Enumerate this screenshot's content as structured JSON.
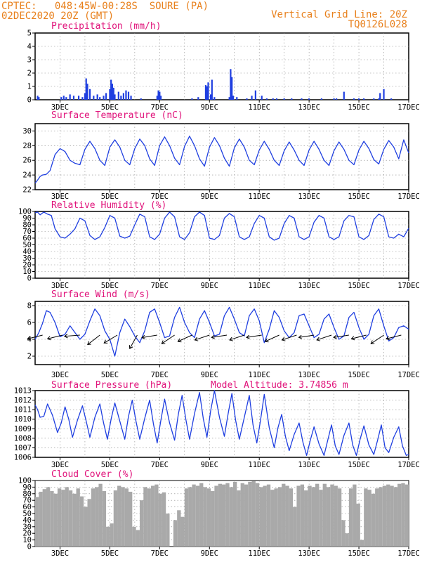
{
  "header": {
    "line1_left": "CPTEC:   048:45W-00:28S  SOURE (PA)",
    "line2_left": "02DEC2020 20Z (GMT)",
    "line1_right": "Vertical Grid Line: 20Z",
    "line2_right": "TQ0126L028"
  },
  "colors": {
    "header_text": "#e8801c",
    "panel_title": "#e0127a",
    "series": "#1f3fe0",
    "cloud": "#a9a9a9",
    "grid": "#8a8a8a",
    "wind_arrow": "#000000"
  },
  "x_axis": {
    "tick_labels": [
      "3DEC",
      "5DEC",
      "7DEC",
      "9DEC",
      "11DEC",
      "13DEC",
      "15DEC",
      "17DEC"
    ],
    "tick_days": [
      3,
      5,
      7,
      9,
      11,
      13,
      15,
      17
    ],
    "start_day": 2.0,
    "end_day": 17.0,
    "vertical_grid": "20Z daily"
  },
  "chart_data": [
    {
      "id": "precip",
      "type": "bar",
      "title": "Precipitation (mm/h)",
      "ylim": [
        0,
        5
      ],
      "yticks": [
        "0",
        "1",
        "2",
        "3",
        "4",
        "5"
      ],
      "x": [
        2.1,
        2.15,
        3.05,
        3.15,
        3.25,
        3.4,
        3.55,
        3.75,
        3.9,
        4.0,
        4.05,
        4.1,
        4.2,
        4.35,
        4.5,
        4.6,
        4.75,
        4.85,
        5.0,
        5.05,
        5.1,
        5.15,
        5.2,
        5.35,
        5.45,
        5.55,
        5.65,
        5.75,
        5.85,
        6.25,
        6.9,
        6.95,
        7.0,
        7.05,
        8.3,
        8.55,
        8.85,
        8.9,
        8.95,
        9.05,
        9.1,
        9.2,
        9.8,
        9.85,
        9.9,
        9.95,
        10.1,
        10.5,
        10.7,
        10.85,
        11.1,
        11.3,
        11.55,
        11.7,
        12.0,
        12.3,
        12.7,
        13.0,
        13.5,
        14.0,
        14.1,
        14.4,
        14.8,
        15.0,
        15.2,
        15.6,
        15.8,
        15.85,
        16.0,
        16.3
      ],
      "values": [
        0.3,
        0.2,
        0.2,
        0.3,
        0.2,
        0.4,
        0.3,
        0.3,
        0.2,
        0.5,
        1.6,
        1.2,
        0.8,
        0.3,
        0.4,
        0.2,
        0.3,
        0.5,
        0.8,
        1.5,
        1.2,
        0.9,
        0.4,
        0.6,
        0.3,
        0.5,
        0.7,
        0.6,
        0.3,
        0.1,
        0.3,
        0.7,
        0.6,
        0.3,
        0.1,
        0.2,
        1.1,
        1.0,
        1.3,
        0.4,
        1.5,
        0.2,
        0.2,
        2.3,
        1.7,
        0.3,
        0.2,
        0.1,
        0.3,
        0.7,
        0.3,
        0.1,
        0.1,
        0.1,
        0.1,
        0.1,
        0.1,
        0.1,
        0.1,
        0.1,
        0.1,
        0.6,
        0.1,
        0.1,
        0.1,
        0.1,
        0.1,
        0.5,
        0.8,
        0.1
      ]
    },
    {
      "id": "temperature",
      "type": "line",
      "title": "Surface Temperature (nC)",
      "ylim": [
        22,
        31
      ],
      "yticks": [
        "22",
        "24",
        "26",
        "28",
        "30"
      ],
      "x": [
        2.0,
        2.1,
        2.2,
        2.3,
        2.45,
        2.6,
        2.8,
        3.0,
        3.2,
        3.4,
        3.6,
        3.8,
        4.0,
        4.2,
        4.4,
        4.6,
        4.8,
        5.0,
        5.2,
        5.4,
        5.6,
        5.8,
        6.0,
        6.2,
        6.4,
        6.6,
        6.8,
        7.0,
        7.2,
        7.4,
        7.6,
        7.8,
        8.0,
        8.2,
        8.4,
        8.6,
        8.8,
        9.0,
        9.2,
        9.4,
        9.6,
        9.8,
        10.0,
        10.2,
        10.4,
        10.6,
        10.8,
        11.0,
        11.2,
        11.4,
        11.6,
        11.8,
        12.0,
        12.2,
        12.4,
        12.6,
        12.8,
        13.0,
        13.2,
        13.4,
        13.6,
        13.8,
        14.0,
        14.2,
        14.4,
        14.6,
        14.8,
        15.0,
        15.2,
        15.4,
        15.6,
        15.8,
        16.0,
        16.2,
        16.4,
        16.6,
        16.8,
        17.0
      ],
      "values": [
        22.9,
        23.3,
        23.8,
        24.0,
        24.1,
        24.6,
        26.8,
        27.6,
        27.2,
        26.0,
        25.6,
        25.4,
        27.5,
        28.6,
        27.6,
        26.0,
        25.3,
        27.8,
        28.8,
        27.8,
        26.0,
        25.4,
        27.6,
        28.9,
        28.0,
        26.2,
        25.3,
        28.0,
        29.2,
        28.0,
        26.3,
        25.4,
        27.9,
        29.3,
        28.0,
        26.2,
        25.2,
        27.8,
        29.1,
        28.0,
        26.3,
        25.2,
        27.7,
        28.9,
        27.8,
        26.0,
        25.4,
        27.4,
        28.6,
        27.5,
        26.0,
        25.3,
        27.3,
        28.5,
        27.4,
        26.0,
        25.3,
        27.4,
        28.6,
        27.5,
        26.0,
        25.3,
        27.3,
        28.5,
        27.5,
        26.0,
        25.4,
        27.4,
        28.6,
        27.6,
        26.1,
        25.5,
        27.5,
        28.7,
        27.8,
        26.2,
        28.8,
        27.0
      ]
    },
    {
      "id": "humidity",
      "type": "line",
      "title": "Relative Humidity (%)",
      "ylim": [
        0,
        100
      ],
      "yticks": [
        "0",
        "10",
        "20",
        "30",
        "40",
        "50",
        "60",
        "70",
        "80",
        "90",
        "100"
      ],
      "x": [
        2.0,
        2.1,
        2.2,
        2.35,
        2.5,
        2.65,
        2.8,
        3.0,
        3.2,
        3.4,
        3.6,
        3.8,
        4.0,
        4.2,
        4.4,
        4.6,
        4.8,
        5.0,
        5.2,
        5.4,
        5.6,
        5.8,
        6.0,
        6.2,
        6.4,
        6.6,
        6.8,
        7.0,
        7.2,
        7.4,
        7.6,
        7.8,
        8.0,
        8.2,
        8.4,
        8.6,
        8.8,
        9.0,
        9.2,
        9.4,
        9.6,
        9.8,
        10.0,
        10.2,
        10.4,
        10.6,
        10.8,
        11.0,
        11.2,
        11.4,
        11.6,
        11.8,
        12.0,
        12.2,
        12.4,
        12.6,
        12.8,
        13.0,
        13.2,
        13.4,
        13.6,
        13.8,
        14.0,
        14.2,
        14.4,
        14.6,
        14.8,
        15.0,
        15.2,
        15.4,
        15.6,
        15.8,
        16.0,
        16.2,
        16.4,
        16.6,
        16.8,
        17.0
      ],
      "values": [
        98,
        99,
        95,
        99,
        96,
        94,
        74,
        62,
        60,
        66,
        74,
        90,
        86,
        64,
        58,
        62,
        76,
        94,
        90,
        63,
        60,
        63,
        80,
        96,
        92,
        62,
        58,
        66,
        90,
        99,
        92,
        62,
        58,
        68,
        92,
        99,
        94,
        60,
        58,
        64,
        90,
        97,
        92,
        62,
        58,
        62,
        82,
        94,
        90,
        62,
        57,
        60,
        82,
        94,
        90,
        62,
        58,
        62,
        84,
        94,
        90,
        62,
        58,
        62,
        86,
        94,
        92,
        62,
        58,
        64,
        88,
        96,
        92,
        62,
        60,
        66,
        62,
        75
      ]
    },
    {
      "id": "wind",
      "type": "line",
      "title": "Surface Wind (m/s)",
      "ylim": [
        1,
        8.5
      ],
      "yticks": [
        "2",
        "4",
        "6",
        "8"
      ],
      "x": [
        2.0,
        2.15,
        2.3,
        2.45,
        2.6,
        2.8,
        3.0,
        3.2,
        3.4,
        3.6,
        3.8,
        4.0,
        4.2,
        4.4,
        4.6,
        4.8,
        5.0,
        5.2,
        5.4,
        5.6,
        5.8,
        6.0,
        6.2,
        6.4,
        6.6,
        6.8,
        7.0,
        7.2,
        7.4,
        7.6,
        7.8,
        8.0,
        8.2,
        8.4,
        8.6,
        8.8,
        9.0,
        9.2,
        9.4,
        9.6,
        9.8,
        10.0,
        10.2,
        10.4,
        10.6,
        10.8,
        11.0,
        11.2,
        11.4,
        11.6,
        11.8,
        12.0,
        12.2,
        12.4,
        12.6,
        12.8,
        13.0,
        13.2,
        13.4,
        13.6,
        13.8,
        14.0,
        14.2,
        14.4,
        14.6,
        14.8,
        15.0,
        15.2,
        15.4,
        15.6,
        15.8,
        16.0,
        16.2,
        16.4,
        16.6,
        16.8,
        17.0
      ],
      "values": [
        4.0,
        4.8,
        5.9,
        7.4,
        7.2,
        6.0,
        4.3,
        4.6,
        5.6,
        4.8,
        4.0,
        4.6,
        6.2,
        7.6,
        6.8,
        5.0,
        4.0,
        2.0,
        4.8,
        6.4,
        5.5,
        4.4,
        3.6,
        5.0,
        7.2,
        7.6,
        6.0,
        4.2,
        4.4,
        6.6,
        7.8,
        6.0,
        4.8,
        4.2,
        6.4,
        7.4,
        6.0,
        4.4,
        4.6,
        6.8,
        7.8,
        6.4,
        4.8,
        4.4,
        6.8,
        7.6,
        6.2,
        3.6,
        5.2,
        7.4,
        6.6,
        5.0,
        4.2,
        4.8,
        6.8,
        7.0,
        5.6,
        4.2,
        4.6,
        6.4,
        7.0,
        5.4,
        4.0,
        4.4,
        6.6,
        7.2,
        5.4,
        4.0,
        4.6,
        6.8,
        7.6,
        5.6,
        3.8,
        4.2,
        5.4,
        5.6,
        5.2
      ],
      "arrows": {
        "x": [
          2.3,
          3.1,
          3.8,
          4.6,
          5.3,
          6.1,
          6.9,
          7.6,
          8.3,
          9.0,
          9.7,
          10.4,
          11.1,
          11.8,
          12.5,
          13.2,
          13.9,
          14.6,
          15.3,
          16.0,
          16.7
        ],
        "u": [
          1.2,
          1.2,
          1.3,
          0.9,
          1.0,
          0.5,
          1.2,
          0.9,
          1.1,
          1.2,
          1.3,
          1.2,
          1.3,
          1.1,
          1.2,
          1.3,
          1.2,
          1.3,
          1.2,
          0.9,
          1.2
        ],
        "v": [
          0.3,
          0.3,
          0.1,
          0.7,
          0.6,
          0.9,
          0.2,
          0.6,
          0.5,
          0.4,
          0.2,
          0.4,
          0.2,
          0.5,
          0.4,
          0.2,
          0.4,
          0.2,
          0.3,
          0.6,
          0.3
        ]
      }
    },
    {
      "id": "pressure",
      "type": "line",
      "title": "Surface Pressure (hPa)",
      "annotation": "Model Altitude: 3.74856 m",
      "ylim": [
        1006,
        1013
      ],
      "yticks": [
        "1006",
        "1007",
        "1008",
        "1009",
        "1010",
        "1011",
        "1012",
        "1013"
      ],
      "x": [
        2.0,
        2.1,
        2.2,
        2.35,
        2.5,
        2.7,
        2.9,
        3.05,
        3.2,
        3.35,
        3.5,
        3.7,
        3.9,
        4.05,
        4.2,
        4.4,
        4.6,
        4.75,
        4.9,
        5.05,
        5.2,
        5.4,
        5.6,
        5.75,
        5.9,
        6.05,
        6.2,
        6.4,
        6.6,
        6.75,
        6.9,
        7.05,
        7.2,
        7.4,
        7.6,
        7.75,
        7.9,
        8.05,
        8.2,
        8.4,
        8.6,
        8.75,
        8.9,
        9.05,
        9.2,
        9.4,
        9.6,
        9.75,
        9.9,
        10.05,
        10.2,
        10.4,
        10.6,
        10.75,
        10.9,
        11.05,
        11.2,
        11.4,
        11.6,
        11.75,
        11.9,
        12.05,
        12.2,
        12.4,
        12.6,
        12.75,
        12.9,
        13.05,
        13.2,
        13.4,
        13.6,
        13.75,
        13.9,
        14.05,
        14.2,
        14.4,
        14.6,
        14.75,
        14.9,
        15.05,
        15.2,
        15.4,
        15.6,
        15.75,
        15.9,
        16.05,
        16.2,
        16.4,
        16.6,
        16.75,
        16.9,
        17.0
      ],
      "values": [
        1011.5,
        1011.0,
        1010.2,
        1010.3,
        1011.6,
        1010.4,
        1008.6,
        1009.6,
        1011.3,
        1010.0,
        1008.1,
        1009.9,
        1011.4,
        1009.8,
        1008.1,
        1010.2,
        1011.6,
        1009.6,
        1007.9,
        1010.0,
        1011.7,
        1009.8,
        1007.9,
        1010.3,
        1012.0,
        1009.8,
        1007.9,
        1010.1,
        1012.0,
        1009.5,
        1007.5,
        1009.9,
        1012.1,
        1009.6,
        1007.8,
        1010.5,
        1012.5,
        1010.0,
        1007.9,
        1010.6,
        1012.8,
        1010.1,
        1008.1,
        1010.9,
        1013.0,
        1010.2,
        1008.2,
        1010.6,
        1012.7,
        1009.9,
        1007.9,
        1010.2,
        1012.5,
        1009.4,
        1007.5,
        1009.9,
        1012.6,
        1009.1,
        1007.0,
        1009.1,
        1010.5,
        1008.2,
        1006.7,
        1008.4,
        1009.6,
        1007.6,
        1006.2,
        1007.8,
        1009.2,
        1007.4,
        1006.2,
        1007.8,
        1009.4,
        1007.2,
        1006.3,
        1008.3,
        1009.6,
        1007.3,
        1006.2,
        1007.9,
        1009.3,
        1007.3,
        1006.3,
        1007.8,
        1009.4,
        1007.0,
        1006.5,
        1008.1,
        1009.2,
        1007.2,
        1006.2,
        1006.3
      ]
    },
    {
      "id": "cloud",
      "type": "bar",
      "title": "Cloud Cover (%)",
      "ylim": [
        0,
        100
      ],
      "yticks": [
        "0",
        "10",
        "20",
        "30",
        "40",
        "50",
        "60",
        "70",
        "80",
        "90",
        "100"
      ],
      "x": [
        2.0,
        2.15,
        2.3,
        2.45,
        2.6,
        2.75,
        2.9,
        3.05,
        3.2,
        3.35,
        3.5,
        3.65,
        3.8,
        3.95,
        4.1,
        4.25,
        4.4,
        4.55,
        4.7,
        4.85,
        5.0,
        5.15,
        5.3,
        5.45,
        5.6,
        5.75,
        5.9,
        6.05,
        6.2,
        6.35,
        6.5,
        6.65,
        6.8,
        6.95,
        7.1,
        7.25,
        7.4,
        7.55,
        7.7,
        7.85,
        8.0,
        8.15,
        8.3,
        8.45,
        8.6,
        8.75,
        8.9,
        9.05,
        9.2,
        9.35,
        9.5,
        9.65,
        9.8,
        9.95,
        10.1,
        10.25,
        10.4,
        10.55,
        10.7,
        10.85,
        11.0,
        11.15,
        11.3,
        11.45,
        11.6,
        11.75,
        11.9,
        12.05,
        12.2,
        12.35,
        12.5,
        12.65,
        12.8,
        12.95,
        13.1,
        13.25,
        13.4,
        13.55,
        13.7,
        13.85,
        14.0,
        14.15,
        14.3,
        14.45,
        14.6,
        14.75,
        14.9,
        15.05,
        15.2,
        15.35,
        15.5,
        15.65,
        15.8,
        15.95,
        16.1,
        16.25,
        16.4,
        16.55,
        16.7,
        16.85
      ],
      "values": [
        75,
        83,
        87,
        90,
        84,
        80,
        88,
        86,
        90,
        85,
        80,
        88,
        76,
        60,
        72,
        88,
        90,
        95,
        84,
        30,
        35,
        85,
        92,
        90,
        88,
        83,
        30,
        25,
        70,
        90,
        88,
        92,
        94,
        80,
        82,
        50,
        0,
        40,
        55,
        45,
        88,
        90,
        94,
        92,
        96,
        90,
        88,
        84,
        92,
        95,
        94,
        96,
        90,
        98,
        85,
        96,
        94,
        98,
        99,
        96,
        90,
        92,
        94,
        86,
        88,
        90,
        95,
        92,
        88,
        60,
        92,
        94,
        85,
        92,
        90,
        95,
        86,
        95,
        90,
        94,
        92,
        88,
        40,
        20,
        88,
        94,
        65,
        10,
        88,
        86,
        80,
        88,
        90,
        92,
        94,
        92,
        90,
        95,
        96,
        94
      ]
    }
  ]
}
